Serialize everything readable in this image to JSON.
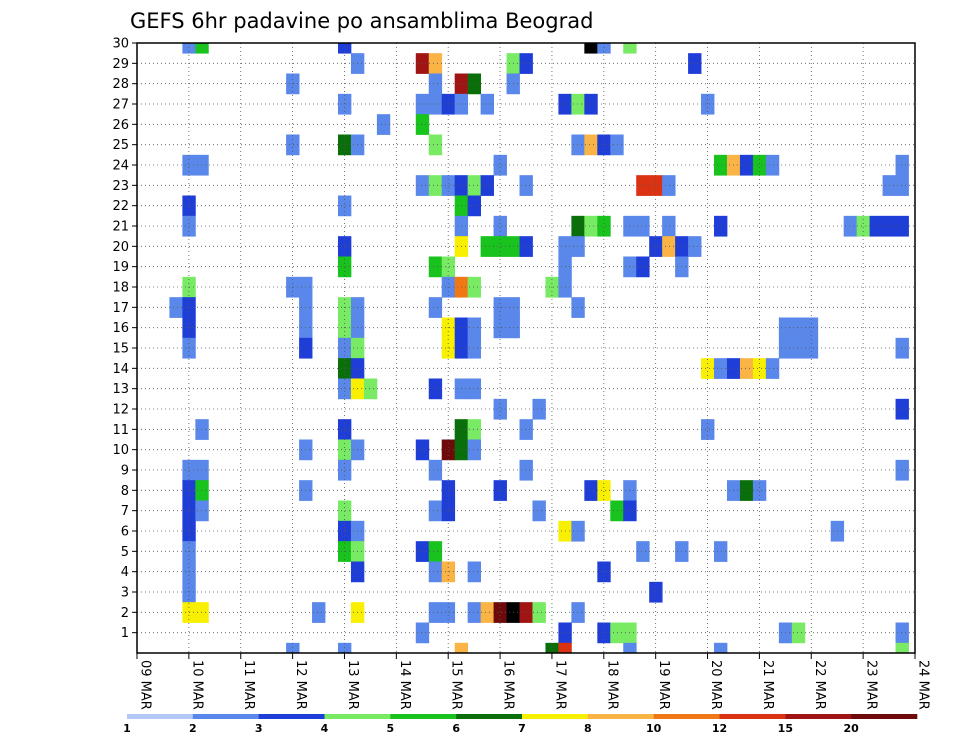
{
  "chart_data": {
    "type": "heatmap",
    "title": "GEFS 6hr padavine po ansamblima Beograd",
    "xlabel": "",
    "ylabel": "",
    "x_ticks": [
      "09 MAR",
      "10 MAR",
      "11 MAR",
      "12 MAR",
      "13 MAR",
      "14 MAR",
      "15 MAR",
      "16 MAR",
      "17 MAR",
      "18 MAR",
      "19 MAR",
      "20 MAR",
      "21 MAR",
      "22 MAR",
      "23 MAR",
      "24 MAR"
    ],
    "y_ticks": [
      1,
      2,
      3,
      4,
      5,
      6,
      7,
      8,
      9,
      10,
      11,
      12,
      13,
      14,
      15,
      16,
      17,
      18,
      19,
      20,
      21,
      22,
      23,
      24,
      25,
      26,
      27,
      28,
      29,
      30
    ],
    "xlim": [
      0,
      60
    ],
    "ylim": [
      0,
      30
    ],
    "grid": true,
    "levels": [
      1,
      2,
      3,
      4,
      5,
      6,
      7,
      8,
      10,
      12,
      15,
      20
    ],
    "colors": [
      "#b4c8f8",
      "#5a87ea",
      "#1e3ed7",
      "#78ea64",
      "#19c31e",
      "#0a6e0a",
      "#f8f000",
      "#fab446",
      "#f07814",
      "#dc3214",
      "#a01414",
      "#6e0a0a"
    ],
    "cells": [
      [
        4,
        30,
        1
      ],
      [
        5,
        30,
        4
      ],
      [
        16,
        30,
        2
      ],
      [
        35,
        30,
        12
      ],
      [
        36,
        30,
        1
      ],
      [
        38,
        30,
        3
      ],
      [
        17,
        29,
        1
      ],
      [
        22,
        29,
        10
      ],
      [
        23,
        29,
        7
      ],
      [
        29,
        29,
        3
      ],
      [
        30,
        29,
        2
      ],
      [
        43,
        29,
        2
      ],
      [
        12,
        28,
        1
      ],
      [
        23,
        28,
        1
      ],
      [
        25,
        28,
        10
      ],
      [
        26,
        28,
        5
      ],
      [
        29,
        28,
        1
      ],
      [
        16,
        27,
        1
      ],
      [
        22,
        27,
        1
      ],
      [
        23,
        27,
        1
      ],
      [
        24,
        27,
        2
      ],
      [
        25,
        27,
        1
      ],
      [
        27,
        27,
        1
      ],
      [
        33,
        27,
        2
      ],
      [
        34,
        27,
        3
      ],
      [
        35,
        27,
        2
      ],
      [
        44,
        27,
        1
      ],
      [
        19,
        26,
        1
      ],
      [
        22,
        26,
        4
      ],
      [
        12,
        25,
        1
      ],
      [
        16,
        25,
        5
      ],
      [
        17,
        25,
        1
      ],
      [
        23,
        25,
        3
      ],
      [
        34,
        25,
        1
      ],
      [
        35,
        25,
        7
      ],
      [
        36,
        25,
        2
      ],
      [
        37,
        25,
        1
      ],
      [
        4,
        24,
        1
      ],
      [
        5,
        24,
        1
      ],
      [
        28,
        24,
        1
      ],
      [
        45,
        24,
        4
      ],
      [
        46,
        24,
        7
      ],
      [
        47,
        24,
        2
      ],
      [
        48,
        24,
        4
      ],
      [
        49,
        24,
        1
      ],
      [
        59,
        24,
        1
      ],
      [
        22,
        23,
        1
      ],
      [
        23,
        23,
        3
      ],
      [
        24,
        23,
        1
      ],
      [
        25,
        23,
        2
      ],
      [
        26,
        23,
        3
      ],
      [
        27,
        23,
        2
      ],
      [
        30,
        23,
        1
      ],
      [
        39,
        23,
        9
      ],
      [
        40,
        23,
        9
      ],
      [
        41,
        23,
        1
      ],
      [
        58,
        23,
        1
      ],
      [
        59,
        23,
        1
      ],
      [
        4,
        22,
        2
      ],
      [
        16,
        22,
        1
      ],
      [
        25,
        22,
        4
      ],
      [
        26,
        22,
        2
      ],
      [
        4,
        21,
        1
      ],
      [
        25,
        21,
        1
      ],
      [
        28,
        21,
        1
      ],
      [
        34,
        21,
        5
      ],
      [
        35,
        21,
        3
      ],
      [
        36,
        21,
        4
      ],
      [
        38,
        21,
        1
      ],
      [
        39,
        21,
        1
      ],
      [
        41,
        21,
        1
      ],
      [
        45,
        21,
        2
      ],
      [
        55,
        21,
        1
      ],
      [
        56,
        21,
        3
      ],
      [
        57,
        21,
        2
      ],
      [
        58,
        21,
        2
      ],
      [
        59,
        21,
        2
      ],
      [
        16,
        20,
        2
      ],
      [
        25,
        20,
        6
      ],
      [
        27,
        20,
        4
      ],
      [
        28,
        20,
        4
      ],
      [
        29,
        20,
        4
      ],
      [
        30,
        20,
        2
      ],
      [
        33,
        20,
        1
      ],
      [
        34,
        20,
        1
      ],
      [
        40,
        20,
        2
      ],
      [
        41,
        20,
        7
      ],
      [
        42,
        20,
        2
      ],
      [
        43,
        20,
        1
      ],
      [
        16,
        19,
        4
      ],
      [
        23,
        19,
        4
      ],
      [
        24,
        19,
        3
      ],
      [
        33,
        19,
        1
      ],
      [
        38,
        19,
        1
      ],
      [
        39,
        19,
        2
      ],
      [
        42,
        19,
        1
      ],
      [
        4,
        18,
        3
      ],
      [
        12,
        18,
        1
      ],
      [
        13,
        18,
        1
      ],
      [
        24,
        18,
        1
      ],
      [
        25,
        18,
        8
      ],
      [
        26,
        18,
        3
      ],
      [
        32,
        18,
        3
      ],
      [
        33,
        18,
        1
      ],
      [
        3,
        17,
        1
      ],
      [
        4,
        17,
        2
      ],
      [
        13,
        17,
        1
      ],
      [
        16,
        17,
        3
      ],
      [
        17,
        17,
        1
      ],
      [
        23,
        17,
        1
      ],
      [
        28,
        17,
        1
      ],
      [
        29,
        17,
        1
      ],
      [
        34,
        17,
        1
      ],
      [
        4,
        16,
        2
      ],
      [
        13,
        16,
        1
      ],
      [
        16,
        16,
        3
      ],
      [
        17,
        16,
        1
      ],
      [
        24,
        16,
        6
      ],
      [
        25,
        16,
        2
      ],
      [
        26,
        16,
        1
      ],
      [
        28,
        16,
        1
      ],
      [
        29,
        16,
        1
      ],
      [
        50,
        16,
        1
      ],
      [
        51,
        16,
        1
      ],
      [
        52,
        16,
        1
      ],
      [
        4,
        15,
        1
      ],
      [
        13,
        15,
        2
      ],
      [
        16,
        15,
        1
      ],
      [
        17,
        15,
        3
      ],
      [
        24,
        15,
        6
      ],
      [
        25,
        15,
        2
      ],
      [
        26,
        15,
        1
      ],
      [
        50,
        15,
        1
      ],
      [
        51,
        15,
        1
      ],
      [
        52,
        15,
        1
      ],
      [
        59,
        15,
        1
      ],
      [
        16,
        14,
        5
      ],
      [
        17,
        14,
        2
      ],
      [
        44,
        14,
        6
      ],
      [
        45,
        14,
        1
      ],
      [
        46,
        14,
        2
      ],
      [
        47,
        14,
        7
      ],
      [
        48,
        14,
        6
      ],
      [
        49,
        14,
        1
      ],
      [
        16,
        13,
        1
      ],
      [
        17,
        13,
        6
      ],
      [
        18,
        13,
        3
      ],
      [
        23,
        13,
        2
      ],
      [
        25,
        13,
        1
      ],
      [
        26,
        13,
        1
      ],
      [
        28,
        12,
        1
      ],
      [
        31,
        12,
        1
      ],
      [
        59,
        12,
        2
      ],
      [
        5,
        11,
        1
      ],
      [
        16,
        11,
        2
      ],
      [
        25,
        11,
        5
      ],
      [
        26,
        11,
        3
      ],
      [
        30,
        11,
        1
      ],
      [
        44,
        11,
        1
      ],
      [
        13,
        10,
        1
      ],
      [
        16,
        10,
        3
      ],
      [
        17,
        10,
        1
      ],
      [
        22,
        10,
        2
      ],
      [
        24,
        10,
        11
      ],
      [
        25,
        10,
        5
      ],
      [
        26,
        10,
        1
      ],
      [
        4,
        9,
        1
      ],
      [
        5,
        9,
        1
      ],
      [
        16,
        9,
        1
      ],
      [
        23,
        9,
        1
      ],
      [
        30,
        9,
        1
      ],
      [
        59,
        9,
        1
      ],
      [
        4,
        8,
        2
      ],
      [
        5,
        8,
        4
      ],
      [
        13,
        8,
        1
      ],
      [
        24,
        8,
        2
      ],
      [
        28,
        8,
        2
      ],
      [
        35,
        8,
        2
      ],
      [
        36,
        8,
        6
      ],
      [
        38,
        8,
        1
      ],
      [
        46,
        8,
        1
      ],
      [
        47,
        8,
        5
      ],
      [
        48,
        8,
        1
      ],
      [
        4,
        7,
        2
      ],
      [
        5,
        7,
        1
      ],
      [
        16,
        7,
        3
      ],
      [
        23,
        7,
        1
      ],
      [
        24,
        7,
        2
      ],
      [
        31,
        7,
        1
      ],
      [
        37,
        7,
        4
      ],
      [
        38,
        7,
        2
      ],
      [
        4,
        6,
        2
      ],
      [
        16,
        6,
        2
      ],
      [
        17,
        6,
        1
      ],
      [
        33,
        6,
        6
      ],
      [
        34,
        6,
        1
      ],
      [
        54,
        6,
        1
      ],
      [
        4,
        5,
        1
      ],
      [
        16,
        5,
        4
      ],
      [
        17,
        5,
        3
      ],
      [
        22,
        5,
        2
      ],
      [
        23,
        5,
        4
      ],
      [
        39,
        5,
        1
      ],
      [
        42,
        5,
        1
      ],
      [
        45,
        5,
        1
      ],
      [
        4,
        4,
        1
      ],
      [
        17,
        4,
        2
      ],
      [
        23,
        4,
        1
      ],
      [
        24,
        4,
        7
      ],
      [
        26,
        4,
        1
      ],
      [
        36,
        4,
        2
      ],
      [
        4,
        3,
        1
      ],
      [
        40,
        3,
        2
      ],
      [
        4,
        2,
        6
      ],
      [
        5,
        2,
        6
      ],
      [
        14,
        2,
        1
      ],
      [
        17,
        2,
        6
      ],
      [
        23,
        2,
        1
      ],
      [
        24,
        2,
        1
      ],
      [
        26,
        2,
        1
      ],
      [
        27,
        2,
        7
      ],
      [
        28,
        2,
        11
      ],
      [
        29,
        2,
        12
      ],
      [
        30,
        2,
        10
      ],
      [
        31,
        2,
        3
      ],
      [
        34,
        2,
        1
      ],
      [
        22,
        1,
        1
      ],
      [
        33,
        1,
        2
      ],
      [
        36,
        1,
        2
      ],
      [
        37,
        1,
        3
      ],
      [
        38,
        1,
        3
      ],
      [
        50,
        1,
        1
      ],
      [
        51,
        1,
        3
      ],
      [
        59,
        1,
        1
      ],
      [
        12,
        0,
        1
      ],
      [
        16,
        0,
        1
      ],
      [
        25,
        0,
        7
      ],
      [
        32,
        0,
        5
      ],
      [
        33,
        0,
        9
      ],
      [
        38,
        0,
        1
      ],
      [
        45,
        0,
        1
      ],
      [
        59,
        0,
        3
      ]
    ]
  }
}
